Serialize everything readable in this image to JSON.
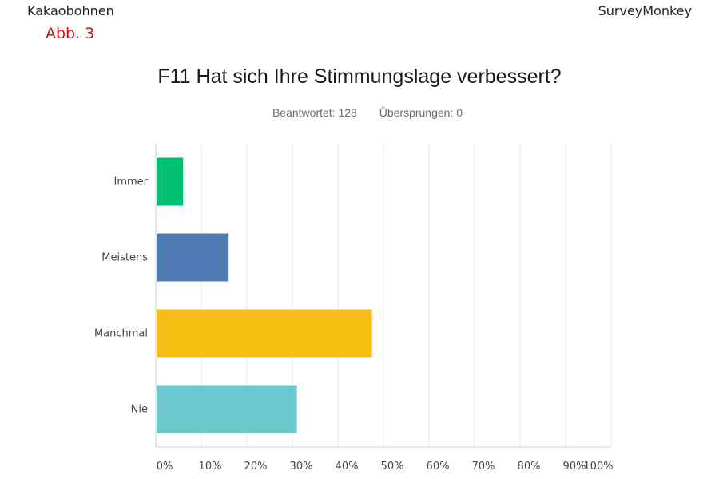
{
  "header": {
    "left_label": "Kakaobohnen",
    "right_label": "SurveyMonkey",
    "annotation": "Abb. 3",
    "annotation_color": "#cc1111"
  },
  "question": {
    "title": "F11 Hat sich Ihre Stimmungslage verbessert?",
    "answered": "Beantwortet: 128",
    "skipped": "Übersprungen: 0"
  },
  "chart_data": {
    "type": "bar",
    "orientation": "horizontal",
    "categories": [
      "Immer",
      "Meistens",
      "Manchmal",
      "Nie"
    ],
    "values": [
      6,
      16,
      47.5,
      31
    ],
    "colors": [
      "#00bf6f",
      "#507cb6",
      "#f7be12",
      "#6bc8cd"
    ],
    "xlim": [
      0,
      100
    ],
    "xticks": [
      "0%",
      "10%",
      "20%",
      "30%",
      "40%",
      "50%",
      "60%",
      "70%",
      "80%",
      "90%",
      "100%"
    ],
    "grid": true
  }
}
